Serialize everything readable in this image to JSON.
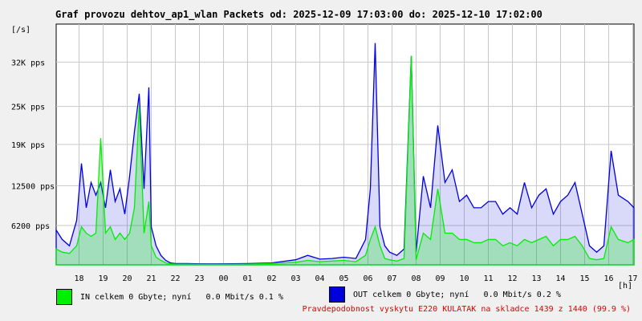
{
  "chart_data": {
    "type": "area",
    "title": "Graf provozu dehtov_ap1_wlan Packets od: 2025-12-09 17:03:00 do: 2025-12-10 17:02:00",
    "ylabel": "[/s]",
    "xlabel": "[h]",
    "ylim": [
      0,
      38000
    ],
    "y_ticks": [
      {
        "label": "6200 pps",
        "value": 6200
      },
      {
        "label": "12500 pps",
        "value": 12500
      },
      {
        "label": "19K pps",
        "value": 19000
      },
      {
        "label": "25K pps",
        "value": 25000
      },
      {
        "label": "32K pps",
        "value": 32000
      }
    ],
    "x_ticks": [
      "18",
      "19",
      "20",
      "21",
      "22",
      "23",
      "00",
      "01",
      "02",
      "03",
      "04",
      "05",
      "06",
      "07",
      "08",
      "09",
      "10",
      "11",
      "12",
      "13",
      "14",
      "15",
      "16",
      "17"
    ],
    "x_start": 17.05,
    "x_end": 41.05,
    "grid": true,
    "series": [
      {
        "name": "OUT",
        "color": "#0000dd",
        "x": [
          17.05,
          17.3,
          17.6,
          17.9,
          18.1,
          18.3,
          18.5,
          18.7,
          18.9,
          19.1,
          19.3,
          19.5,
          19.7,
          19.9,
          20.1,
          20.3,
          20.5,
          20.7,
          20.9,
          21.0,
          21.2,
          21.4,
          21.6,
          21.8,
          22.0,
          22.5,
          23.0,
          24.0,
          25.0,
          26.0,
          27.0,
          27.5,
          28.0,
          28.5,
          29.0,
          29.5,
          29.9,
          30.1,
          30.3,
          30.5,
          30.7,
          30.9,
          31.2,
          31.5,
          31.8,
          32.0,
          32.3,
          32.6,
          32.9,
          33.2,
          33.5,
          33.8,
          34.1,
          34.4,
          34.7,
          35.0,
          35.3,
          35.6,
          35.9,
          36.2,
          36.5,
          36.8,
          37.1,
          37.4,
          37.7,
          38.0,
          38.3,
          38.6,
          38.9,
          39.2,
          39.5,
          39.8,
          40.1,
          40.4,
          40.8,
          41.05
        ],
        "values": [
          5500,
          4000,
          3000,
          7000,
          16000,
          9000,
          13000,
          11000,
          13000,
          9000,
          15000,
          10000,
          12000,
          8000,
          14000,
          21000,
          27000,
          12000,
          28000,
          6000,
          3000,
          1500,
          700,
          300,
          200,
          200,
          150,
          150,
          200,
          300,
          800,
          1500,
          900,
          1000,
          1200,
          1000,
          4000,
          12000,
          35000,
          6000,
          3000,
          2000,
          1500,
          2500,
          33000,
          2000,
          14000,
          9000,
          22000,
          13000,
          15000,
          10000,
          11000,
          9000,
          9000,
          10000,
          10000,
          8000,
          9000,
          8000,
          13000,
          9000,
          11000,
          12000,
          8000,
          10000,
          11000,
          13000,
          8000,
          3000,
          2000,
          3000,
          18000,
          11000,
          10000,
          9000
        ]
      },
      {
        "name": "IN",
        "color": "#00ee00",
        "x": [
          17.05,
          17.3,
          17.6,
          17.9,
          18.1,
          18.3,
          18.5,
          18.7,
          18.9,
          19.1,
          19.3,
          19.5,
          19.7,
          19.9,
          20.1,
          20.3,
          20.5,
          20.7,
          20.9,
          21.0,
          21.2,
          21.4,
          21.6,
          21.8,
          22.0,
          22.5,
          23.0,
          24.0,
          25.0,
          26.0,
          27.0,
          27.5,
          28.0,
          28.5,
          29.0,
          29.5,
          29.9,
          30.1,
          30.3,
          30.5,
          30.7,
          30.9,
          31.2,
          31.5,
          31.8,
          32.0,
          32.3,
          32.6,
          32.9,
          33.2,
          33.5,
          33.8,
          34.1,
          34.4,
          34.7,
          35.0,
          35.3,
          35.6,
          35.9,
          36.2,
          36.5,
          36.8,
          37.1,
          37.4,
          37.7,
          38.0,
          38.3,
          38.6,
          38.9,
          39.2,
          39.5,
          39.8,
          40.1,
          40.4,
          40.8,
          41.05
        ],
        "values": [
          2500,
          2000,
          1800,
          3000,
          6000,
          5000,
          4500,
          5000,
          20000,
          5000,
          6000,
          4000,
          5000,
          4000,
          5000,
          9000,
          25000,
          5000,
          10000,
          3000,
          1200,
          700,
          300,
          150,
          100,
          100,
          80,
          80,
          100,
          200,
          400,
          700,
          500,
          600,
          700,
          500,
          1500,
          4000,
          6000,
          3000,
          1000,
          800,
          600,
          1000,
          33000,
          800,
          5000,
          4000,
          12000,
          5000,
          5000,
          4000,
          4000,
          3500,
          3500,
          4000,
          4000,
          3000,
          3500,
          3000,
          4000,
          3500,
          4000,
          4500,
          3000,
          4000,
          4000,
          4500,
          3000,
          1000,
          800,
          1000,
          6000,
          4000,
          3500,
          4000
        ]
      }
    ]
  },
  "legend": {
    "in_text": "IN celkem 0 Gbyte; nyní   0.0 Mbit/s 0.1 %",
    "out_text": "OUT celkem 0 Gbyte; nyní   0.0 Mbit/s 0.2 %",
    "in_color": "#00ee00",
    "out_color": "#0000dd"
  },
  "note": "Pravdepodobnost vyskytu E220 KULATAK na skladce 1439 z 1440 (99.9 %)"
}
